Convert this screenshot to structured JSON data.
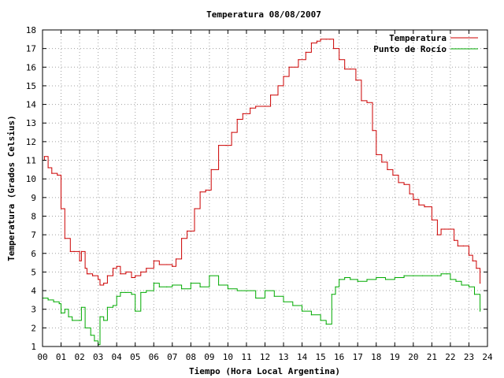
{
  "chart_data": {
    "type": "line",
    "title": "Temperatura 08/08/2007",
    "xlabel": "Tiempo (Hora Local Argentina)",
    "ylabel": "Temperatura (Grados Celsius)",
    "xlim": [
      0,
      24
    ],
    "ylim": [
      1,
      18
    ],
    "x_ticks": [
      "00",
      "01",
      "02",
      "03",
      "04",
      "05",
      "06",
      "07",
      "08",
      "09",
      "10",
      "11",
      "12",
      "13",
      "14",
      "15",
      "16",
      "17",
      "18",
      "19",
      "20",
      "21",
      "22",
      "23",
      "24"
    ],
    "y_ticks": [
      1,
      2,
      3,
      4,
      5,
      6,
      7,
      8,
      9,
      10,
      11,
      12,
      13,
      14,
      15,
      16,
      17,
      18
    ],
    "grid": true,
    "legend_position": "top-right",
    "series": [
      {
        "name": "Temperatura",
        "color": "#cc0000",
        "x": [
          0.0,
          0.1,
          0.3,
          0.5,
          0.8,
          1.0,
          1.2,
          1.5,
          1.7,
          2.0,
          2.1,
          2.3,
          2.4,
          2.5,
          2.7,
          3.0,
          3.1,
          3.3,
          3.5,
          3.8,
          4.0,
          4.2,
          4.5,
          4.8,
          5.0,
          5.3,
          5.6,
          6.0,
          6.3,
          6.7,
          7.0,
          7.2,
          7.5,
          7.8,
          8.2,
          8.5,
          8.8,
          9.1,
          9.5,
          9.9,
          10.2,
          10.5,
          10.8,
          11.2,
          11.5,
          12.0,
          12.3,
          12.7,
          13.0,
          13.3,
          13.8,
          14.2,
          14.5,
          14.8,
          15.0,
          15.3,
          15.5,
          15.7,
          16.0,
          16.3,
          16.6,
          16.9,
          17.2,
          17.5,
          17.8,
          18.0,
          18.3,
          18.6,
          18.9,
          19.2,
          19.5,
          19.8,
          20.0,
          20.3,
          20.6,
          21.0,
          21.3,
          21.5,
          21.7,
          21.9,
          22.2,
          22.4,
          22.7,
          23.0,
          23.2,
          23.4,
          23.6
        ],
        "values": [
          11.0,
          11.2,
          10.6,
          10.3,
          10.2,
          8.4,
          6.8,
          6.1,
          6.1,
          5.6,
          6.1,
          5.2,
          4.9,
          4.9,
          4.8,
          4.6,
          4.3,
          4.4,
          4.8,
          5.2,
          5.3,
          4.9,
          5.0,
          4.7,
          4.8,
          5.0,
          5.2,
          5.6,
          5.4,
          5.4,
          5.3,
          5.7,
          6.8,
          7.2,
          8.4,
          9.3,
          9.4,
          10.5,
          11.8,
          11.8,
          12.5,
          13.2,
          13.5,
          13.8,
          13.9,
          13.9,
          14.5,
          15.0,
          15.5,
          16.0,
          16.4,
          16.8,
          17.3,
          17.4,
          17.5,
          17.5,
          17.5,
          17.0,
          16.4,
          15.9,
          15.9,
          15.3,
          14.2,
          14.1,
          12.6,
          11.3,
          10.9,
          10.5,
          10.2,
          9.8,
          9.7,
          9.2,
          8.9,
          8.6,
          8.5,
          7.8,
          7.0,
          7.3,
          7.3,
          7.3,
          6.7,
          6.4,
          6.4,
          5.9,
          5.6,
          5.2,
          4.4
        ]
      },
      {
        "name": "Punto de Rocío",
        "color": "#00aa00",
        "x": [
          0.0,
          0.3,
          0.6,
          0.9,
          1.0,
          1.2,
          1.4,
          1.6,
          2.0,
          2.1,
          2.3,
          2.6,
          2.8,
          3.0,
          3.1,
          3.3,
          3.5,
          3.8,
          4.0,
          4.2,
          4.5,
          4.8,
          5.0,
          5.3,
          5.6,
          6.0,
          6.3,
          6.7,
          7.0,
          7.5,
          8.0,
          8.5,
          9.0,
          9.5,
          10.0,
          10.5,
          11.0,
          11.5,
          12.0,
          12.5,
          13.0,
          13.5,
          14.0,
          14.5,
          15.0,
          15.3,
          15.6,
          15.8,
          16.0,
          16.3,
          16.6,
          17.0,
          17.5,
          18.0,
          18.5,
          19.0,
          19.5,
          20.0,
          20.5,
          21.0,
          21.3,
          21.5,
          21.8,
          22.0,
          22.3,
          22.6,
          23.0,
          23.3,
          23.6
        ],
        "values": [
          3.6,
          3.5,
          3.4,
          3.3,
          2.8,
          3.0,
          2.6,
          2.4,
          2.4,
          3.1,
          2.0,
          1.6,
          1.3,
          1.1,
          2.6,
          2.4,
          3.1,
          3.2,
          3.7,
          3.9,
          3.9,
          3.8,
          2.9,
          3.9,
          4.0,
          4.4,
          4.2,
          4.2,
          4.3,
          4.1,
          4.4,
          4.2,
          4.8,
          4.3,
          4.1,
          4.0,
          4.0,
          3.6,
          4.0,
          3.7,
          3.4,
          3.2,
          2.9,
          2.7,
          2.4,
          2.2,
          3.8,
          4.2,
          4.6,
          4.7,
          4.6,
          4.5,
          4.6,
          4.7,
          4.6,
          4.7,
          4.8,
          4.8,
          4.8,
          4.8,
          4.8,
          4.9,
          4.9,
          4.6,
          4.5,
          4.3,
          4.2,
          3.8,
          2.9
        ]
      }
    ]
  }
}
